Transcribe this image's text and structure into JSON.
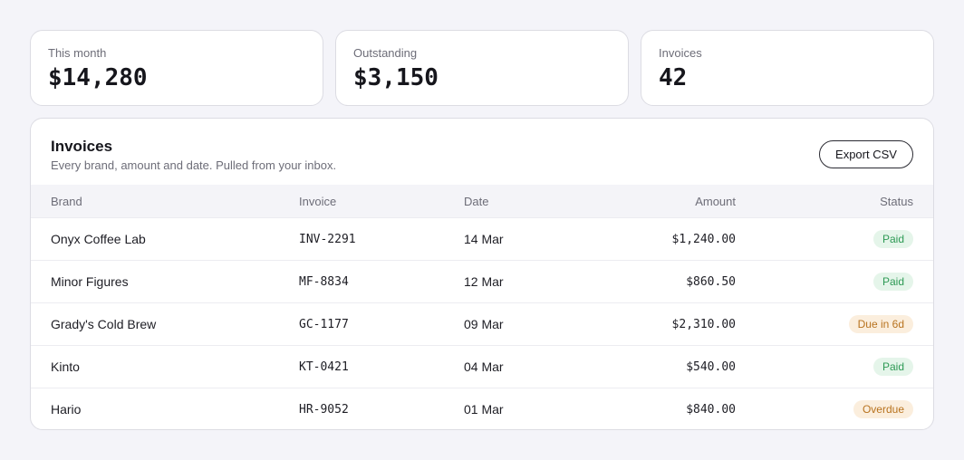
{
  "stats": [
    {
      "label": "This month",
      "value": "$14,280"
    },
    {
      "label": "Outstanding",
      "value": "$3,150"
    },
    {
      "label": "Invoices",
      "value": "42"
    }
  ],
  "invoices": {
    "title": "Invoices",
    "subtitle": "Every brand, amount and date. Pulled from your inbox.",
    "export_label": "Export CSV",
    "columns": {
      "brand": "Brand",
      "invoice": "Invoice",
      "date": "Date",
      "amount": "Amount",
      "status": "Status"
    },
    "rows": [
      {
        "brand": "Onyx Coffee Lab",
        "invoice": "INV-2291",
        "date": "14 Mar",
        "amount": "$1,240.00",
        "status": "Paid"
      },
      {
        "brand": "Minor Figures",
        "invoice": "MF-8834",
        "date": "12 Mar",
        "amount": "$860.50",
        "status": "Paid"
      },
      {
        "brand": "Grady's Cold Brew",
        "invoice": "GC-1177",
        "date": "09 Mar",
        "amount": "$2,310.00",
        "status": "Due in 6d"
      },
      {
        "brand": "Kinto",
        "invoice": "KT-0421",
        "date": "04 Mar",
        "amount": "$540.00",
        "status": "Paid"
      },
      {
        "brand": "Hario",
        "invoice": "HR-9052",
        "date": "01 Mar",
        "amount": "$840.00",
        "status": "Overdue"
      }
    ]
  },
  "colors": {
    "paid": "#2e9a55",
    "pending": "#b8731f",
    "background": "#f4f4f9"
  }
}
